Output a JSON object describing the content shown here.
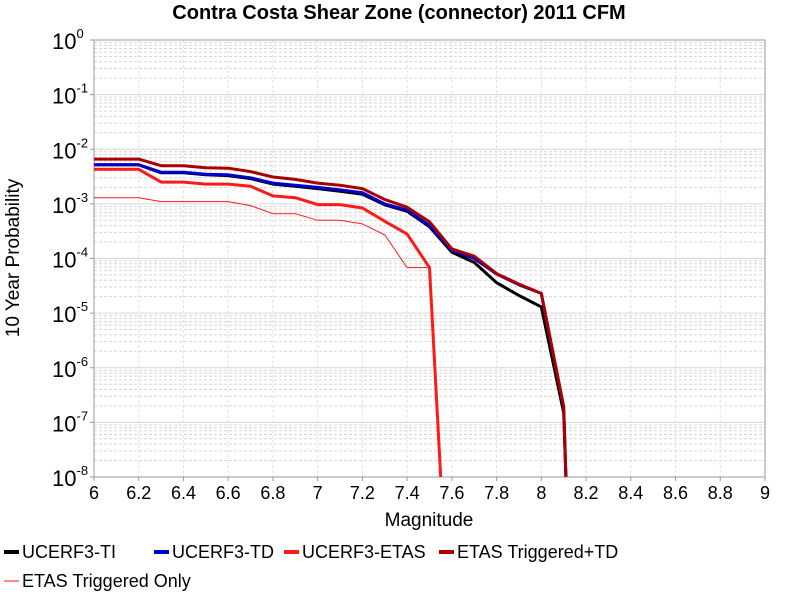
{
  "chart_data": {
    "type": "line",
    "title": "Contra Costa Shear Zone (connector) 2011 CFM",
    "xlabel": "Magnitude",
    "ylabel": "10 Year Probability",
    "xlim": [
      6,
      9
    ],
    "ylim": [
      1e-08,
      1
    ],
    "y_scale": "log",
    "grid": true,
    "legend_placement": "bottom",
    "x_ticks": [
      "6",
      "6.2",
      "6.4",
      "6.6",
      "6.8",
      "7",
      "7.2",
      "7.4",
      "7.6",
      "7.8",
      "8",
      "8.2",
      "8.4",
      "8.6",
      "8.8",
      "9"
    ],
    "y_ticks": [
      {
        "base": "10",
        "exp": "0"
      },
      {
        "base": "10",
        "exp": "-1"
      },
      {
        "base": "10",
        "exp": "-2"
      },
      {
        "base": "10",
        "exp": "-3"
      },
      {
        "base": "10",
        "exp": "-4"
      },
      {
        "base": "10",
        "exp": "-5"
      },
      {
        "base": "10",
        "exp": "-6"
      },
      {
        "base": "10",
        "exp": "-7"
      },
      {
        "base": "10",
        "exp": "-8"
      }
    ],
    "series": [
      {
        "name": "UCERF3-TI",
        "color": "#000000",
        "width": 3,
        "x": [
          6.0,
          6.1,
          6.2,
          6.3,
          6.4,
          6.5,
          6.6,
          6.7,
          6.8,
          6.9,
          7.0,
          7.1,
          7.2,
          7.3,
          7.4,
          7.5,
          7.6,
          7.7,
          7.8,
          7.9,
          8.0,
          8.1,
          8.11
        ],
        "y": [
          0.0052,
          0.0052,
          0.0052,
          0.0037,
          0.0037,
          0.0034,
          0.0033,
          0.0029,
          0.0023,
          0.0021,
          0.0019,
          0.0017,
          0.0015,
          0.00096,
          0.00073,
          0.00038,
          0.00013,
          8.5e-05,
          3.6e-05,
          2.1e-05,
          1.3e-05,
          1.5e-07,
          5e-09
        ]
      },
      {
        "name": "UCERF3-TD",
        "color": "#0000cc",
        "width": 3,
        "x": [
          6.0,
          6.1,
          6.2,
          6.3,
          6.4,
          6.5,
          6.6,
          6.7,
          6.8,
          6.9,
          7.0,
          7.1,
          7.2,
          7.3,
          7.4,
          7.5,
          7.6,
          7.7,
          7.8,
          7.9,
          8.0,
          8.1,
          8.11
        ],
        "y": [
          0.0052,
          0.0052,
          0.0052,
          0.0038,
          0.0038,
          0.0035,
          0.0034,
          0.003,
          0.0024,
          0.0022,
          0.002,
          0.0018,
          0.0016,
          0.001,
          0.00077,
          0.0004,
          0.00014,
          0.0001,
          5.2e-05,
          3.3e-05,
          2.3e-05,
          1.9e-07,
          5e-09
        ]
      },
      {
        "name": "UCERF3-ETAS",
        "color": "#ff1a1a",
        "width": 3,
        "x": [
          6.0,
          6.1,
          6.2,
          6.3,
          6.4,
          6.5,
          6.6,
          6.7,
          6.8,
          6.9,
          7.0,
          7.1,
          7.2,
          7.3,
          7.4,
          7.5,
          7.55
        ],
        "y": [
          0.0043,
          0.0043,
          0.0043,
          0.0025,
          0.0025,
          0.0023,
          0.0023,
          0.0021,
          0.0014,
          0.0013,
          0.00097,
          0.00097,
          0.00084,
          0.00048,
          0.00028,
          6.8e-05,
          5e-09
        ]
      },
      {
        "name": "ETAS Triggered+TD",
        "color": "#aa0000",
        "width": 3,
        "x": [
          6.0,
          6.1,
          6.2,
          6.3,
          6.4,
          6.5,
          6.6,
          6.7,
          6.8,
          6.9,
          7.0,
          7.1,
          7.2,
          7.3,
          7.4,
          7.5,
          7.6,
          7.7,
          7.8,
          7.9,
          8.0,
          8.1,
          8.11
        ],
        "y": [
          0.0066,
          0.0066,
          0.0066,
          0.005,
          0.005,
          0.0046,
          0.0045,
          0.0039,
          0.0031,
          0.0028,
          0.0024,
          0.0022,
          0.0019,
          0.0012,
          0.00087,
          0.00047,
          0.00015,
          0.00011,
          5.3e-05,
          3.4e-05,
          2.3e-05,
          1.9e-07,
          5e-09
        ]
      },
      {
        "name": "ETAS Triggered Only",
        "color": "#ff1a1a",
        "width": 1,
        "x": [
          6.0,
          6.1,
          6.2,
          6.3,
          6.4,
          6.5,
          6.6,
          6.7,
          6.8,
          6.9,
          7.0,
          7.1,
          7.2,
          7.3,
          7.4,
          7.5
        ],
        "y": [
          0.0013,
          0.0013,
          0.0013,
          0.0011,
          0.0011,
          0.0011,
          0.0011,
          0.00093,
          0.00066,
          0.00066,
          0.0005,
          0.0005,
          0.00043,
          0.00027,
          6.8e-05,
          6.8e-05
        ]
      }
    ]
  }
}
